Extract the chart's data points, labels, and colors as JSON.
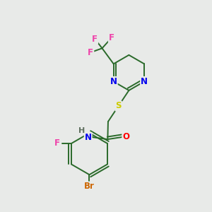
{
  "background_color": "#e8eae8",
  "atom_colors": {
    "N": "#0000ee",
    "S": "#cccc00",
    "O": "#ff0000",
    "F": "#ee44aa",
    "Br": "#cc6600",
    "C": "#1a5c1a",
    "H": "#607060"
  },
  "bond_color": "#2a6a2a",
  "bond_lw": 1.4,
  "fs": 8.5
}
